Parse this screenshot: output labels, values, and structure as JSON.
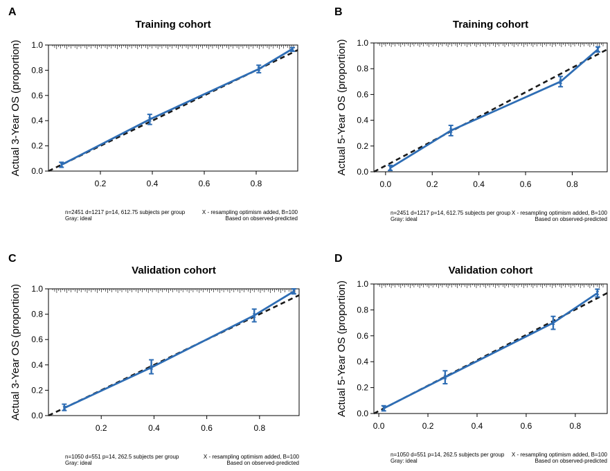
{
  "chart_data": [
    {
      "panel": "A",
      "type": "line",
      "title": "Training cohort",
      "ylabel": "Actual 3-Year OS (proportion)",
      "xlabel": "",
      "xlim": [
        0.0,
        0.96
      ],
      "ylim": [
        0.0,
        1.0
      ],
      "xticks": [
        "0.2",
        "0.4",
        "0.6",
        "0.8"
      ],
      "yticks": [
        "0.0",
        "0.2",
        "0.4",
        "0.6",
        "0.8",
        "1.0"
      ],
      "footer_left": [
        "n=2451 d=1217 p=14, 612.75 subjects per group",
        "Gray: ideal"
      ],
      "footer_right": [
        "X - resampling optimism added, B=100",
        "Based on observed-predicted"
      ],
      "series": [
        {
          "x": [
            0.05,
            0.39,
            0.81,
            0.94
          ],
          "y": [
            0.05,
            0.41,
            0.81,
            0.97
          ],
          "ylow": [
            0.03,
            0.37,
            0.78,
            0.95
          ],
          "yhigh": [
            0.07,
            0.45,
            0.84,
            0.98
          ]
        }
      ],
      "ideal": {
        "x": [
          0.0,
          0.96
        ],
        "y": [
          0.0,
          0.96
        ]
      }
    },
    {
      "panel": "B",
      "type": "line",
      "title": "Training cohort",
      "ylabel": "Actual 5-Year OS (proportion)",
      "xlabel": "",
      "xlim": [
        -0.05,
        0.95
      ],
      "ylim": [
        0.0,
        1.0
      ],
      "xticks": [
        "0.0",
        "0.2",
        "0.4",
        "0.6",
        "0.8"
      ],
      "yticks": [
        "0.0",
        "0.2",
        "0.4",
        "0.6",
        "0.8",
        "1.0"
      ],
      "footer_left": [
        "n=2451 d=1217 p=14, 612.75 subjects per group",
        "Gray: ideal"
      ],
      "footer_right": [
        "X - resampling optimism added, B=100",
        "Based on observed-predicted"
      ],
      "series": [
        {
          "x": [
            0.02,
            0.28,
            0.75,
            0.91
          ],
          "y": [
            0.03,
            0.32,
            0.7,
            0.95
          ],
          "ylow": [
            0.01,
            0.28,
            0.66,
            0.93
          ],
          "yhigh": [
            0.05,
            0.36,
            0.74,
            0.97
          ]
        }
      ],
      "ideal": {
        "x": [
          -0.05,
          0.95
        ],
        "y": [
          -0.05,
          0.95
        ]
      }
    },
    {
      "panel": "C",
      "type": "line",
      "title": "Validation cohort",
      "ylabel": "Actual 3-Year OS (proportion)",
      "xlabel": "",
      "xlim": [
        0.0,
        0.95
      ],
      "ylim": [
        0.0,
        1.0
      ],
      "xticks": [
        "0.2",
        "0.4",
        "0.6",
        "0.8"
      ],
      "yticks": [
        "0.0",
        "0.2",
        "0.4",
        "0.6",
        "0.8",
        "1.0"
      ],
      "footer_left": [
        "n=1050 d=551 p=14, 262.5 subjects per group",
        "Gray: ideal"
      ],
      "footer_right": [
        "X - resampling optimism added, B=100",
        "Based on observed-predicted"
      ],
      "series": [
        {
          "x": [
            0.06,
            0.39,
            0.78,
            0.93
          ],
          "y": [
            0.06,
            0.38,
            0.79,
            0.98
          ],
          "ylow": [
            0.04,
            0.33,
            0.74,
            0.96
          ],
          "yhigh": [
            0.09,
            0.44,
            0.84,
            1.0
          ]
        }
      ],
      "ideal": {
        "x": [
          0.0,
          0.95
        ],
        "y": [
          0.0,
          0.95
        ]
      }
    },
    {
      "panel": "D",
      "type": "line",
      "title": "Validation cohort",
      "ylabel": "Actual 5-Year OS (proportion)",
      "xlabel": "",
      "xlim": [
        -0.02,
        0.93
      ],
      "ylim": [
        0.0,
        1.0
      ],
      "xticks": [
        "0.0",
        "0.2",
        "0.4",
        "0.6",
        "0.8"
      ],
      "yticks": [
        "0.0",
        "0.2",
        "0.4",
        "0.6",
        "0.8",
        "1.0"
      ],
      "footer_left": [
        "n=1050 d=551 p=14, 262.5 subjects per group",
        "Gray: ideal"
      ],
      "footer_right": [
        "X - resampling optimism added, B=100",
        "Based on observed-predicted"
      ],
      "series": [
        {
          "x": [
            0.02,
            0.27,
            0.71,
            0.89
          ],
          "y": [
            0.04,
            0.28,
            0.7,
            0.93
          ],
          "ylow": [
            0.02,
            0.23,
            0.65,
            0.9
          ],
          "yhigh": [
            0.06,
            0.33,
            0.75,
            0.96
          ]
        }
      ],
      "ideal": {
        "x": [
          -0.02,
          0.93
        ],
        "y": [
          -0.02,
          0.93
        ]
      }
    }
  ],
  "colors": {
    "observed": "#2e6db4",
    "ideal": "#1a1a1a",
    "axis": "#000000"
  }
}
